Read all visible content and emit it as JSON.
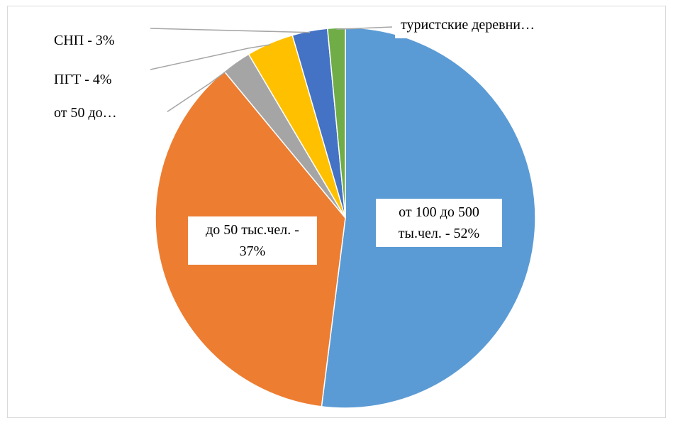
{
  "chart_data": {
    "type": "pie",
    "categories": [
      "от 100 до 500 ты.чел. - 52%",
      "до 50 тыс.чел. - 37%",
      "от 50 до…",
      "ПГТ - 4%",
      "СНП - 3%",
      "туристские деревни…"
    ],
    "values": [
      52,
      37,
      2.5,
      4,
      3,
      1.5
    ],
    "colors": [
      "#5b9bd5",
      "#ed7d31",
      "#a5a5a5",
      "#ffc000",
      "#4472c4",
      "#70ad47"
    ]
  }
}
